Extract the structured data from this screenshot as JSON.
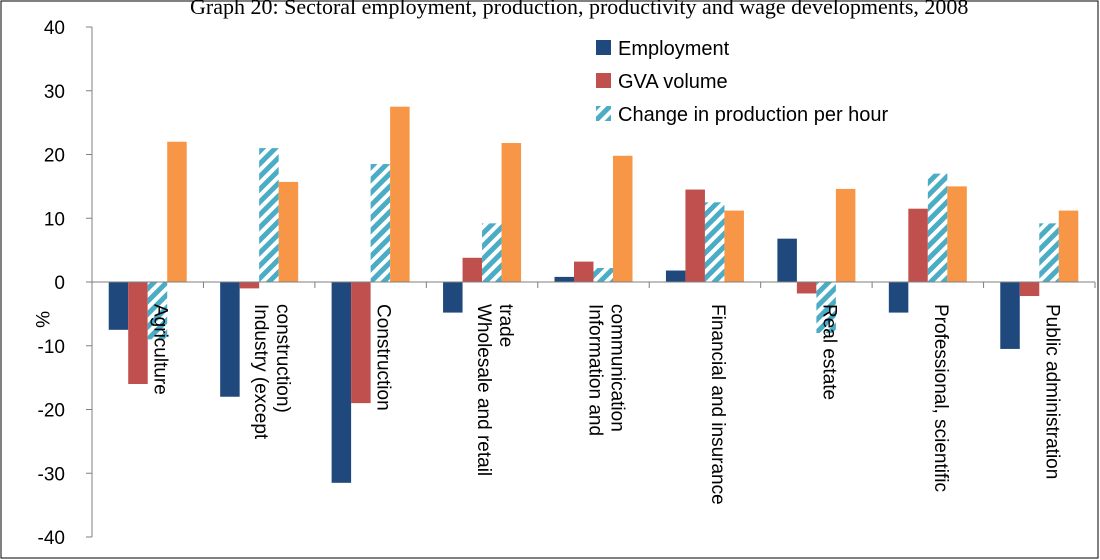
{
  "chart_data": {
    "type": "bar",
    "title": "Graph 20: Sectoral employment, production, productivity and wage developments, 2008",
    "ylabel": "%",
    "ylim": [
      -40,
      40
    ],
    "yticks": [
      40,
      30,
      20,
      10,
      0,
      -10,
      -20,
      -30,
      -40
    ],
    "grid": false,
    "legend_position": "top-right",
    "categories": [
      [
        "Agriculture"
      ],
      [
        "Industry (except",
        "construction)"
      ],
      [
        "Construction"
      ],
      [
        "Wholesale and retail",
        "trade"
      ],
      [
        "Information and",
        "communication"
      ],
      [
        "Financial and insurance"
      ],
      [
        "Real estate"
      ],
      [
        "Professional, scientific"
      ],
      [
        "Public administration"
      ]
    ],
    "series": [
      {
        "name": "Employment",
        "color": "#1F497D",
        "pattern": "solid",
        "values": [
          -7.5,
          -18.0,
          -31.5,
          -4.8,
          0.8,
          1.8,
          6.8,
          -4.8,
          -10.5
        ]
      },
      {
        "name": "GVA volume",
        "color": "#C0504D",
        "pattern": "solid",
        "values": [
          -16.0,
          -1.0,
          -19.0,
          3.8,
          3.2,
          14.5,
          -1.8,
          11.5,
          -2.2
        ]
      },
      {
        "name": "Change in production per hour",
        "color": "#4BACC6",
        "pattern": "hatched",
        "values": [
          -9.0,
          21.0,
          18.5,
          9.2,
          2.2,
          12.5,
          -8.0,
          17.0,
          9.2
        ]
      },
      {
        "name": "",
        "color": "#F79646",
        "pattern": "solid",
        "values": [
          22.0,
          15.7,
          27.5,
          21.8,
          19.8,
          11.2,
          14.6,
          15.0,
          11.2
        ]
      }
    ]
  }
}
